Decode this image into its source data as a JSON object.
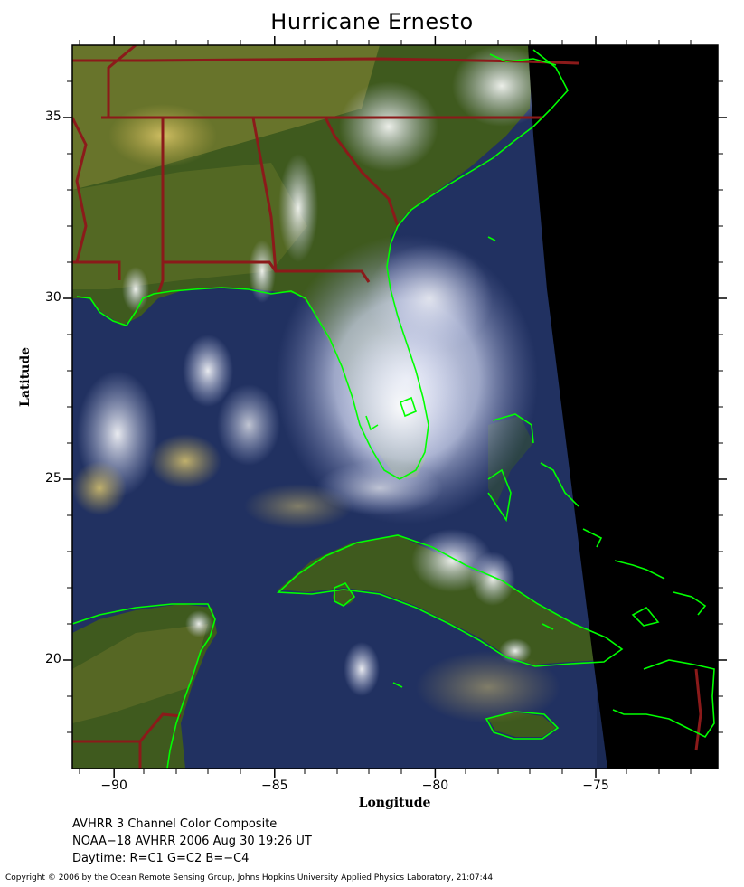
{
  "title": "Hurricane Ernesto",
  "axes": {
    "xlabel": "Longitude",
    "ylabel": "Latitude",
    "xlim": [
      -91.3,
      -71.2
    ],
    "ylim": [
      17.0,
      37.0
    ],
    "xticks": [
      {
        "value": -90,
        "label": "−90"
      },
      {
        "value": -85,
        "label": "−85"
      },
      {
        "value": -80,
        "label": "−80"
      },
      {
        "value": -75,
        "label": "−75"
      }
    ],
    "yticks": [
      {
        "value": 35,
        "label": "35"
      },
      {
        "value": 30,
        "label": "30"
      },
      {
        "value": 25,
        "label": "25"
      },
      {
        "value": 20,
        "label": "20"
      }
    ]
  },
  "info": {
    "line1": "AVHRR 3 Channel Color Composite",
    "line2": "NOAA−18 AVHRR 2006 Aug 30 19:26 UT",
    "line3": "Daytime: R=C1 G=C2 B=−C4"
  },
  "copyright": "Copyright © 2006 by the Ocean Remote Sensing Group, Johns Hopkins University Applied Physics Laboratory, 21:07:44",
  "colors": {
    "coastline": "#00ff00",
    "state_border": "#8b1a1a",
    "ocean": "#1b2a55",
    "land": "#3f5a1e",
    "cloud": "#e8ecf8",
    "no_data": "#000000"
  }
}
